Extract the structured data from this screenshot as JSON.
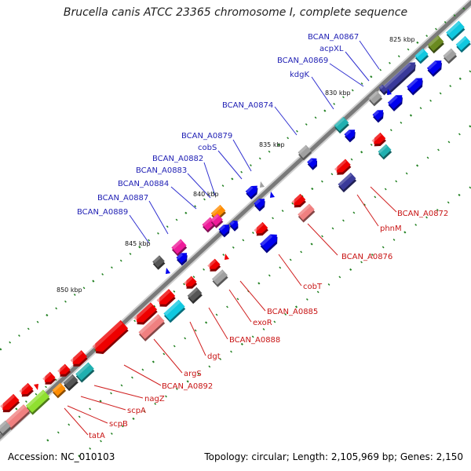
{
  "title": "Brucella canis ATCC 23365 chromosome I, complete sequence",
  "accession": "Accession: NC_010103",
  "summary": "Topology: circular; Length: 2,105,969 bp; Genes: 2,150",
  "ticks": [
    "825 kbp",
    "830 kbp",
    "835 kbp",
    "840 kbp",
    "845 kbp",
    "850 kbp"
  ],
  "forward_labels": [
    "BCAN_A0867",
    "acpXL",
    "BCAN_A0869",
    "kdgK",
    "BCAN_A0874",
    "BCAN_A0879",
    "cobS",
    "BCAN_A0882",
    "BCAN_A0883",
    "BCAN_A0884",
    "BCAN_A0887",
    "BCAN_A0889"
  ],
  "reverse_labels": [
    "BCAN_A0872",
    "phnM",
    "BCAN_A0876",
    "cobT",
    "BCAN_A0885",
    "exoR",
    "BCAN_A0888",
    "dgt",
    "argS",
    "BCAN_A0892",
    "nagZ",
    "scpA",
    "scpB",
    "tatA"
  ],
  "colors": {
    "forward_label": "#1f1fb4",
    "reverse_label": "#c81414",
    "backbone": "#808080",
    "blue": "#0000ee",
    "red": "#ee0000",
    "navy": "#3a3a9a",
    "teal": "#20b0b0",
    "cyan": "#10c8e0",
    "olive": "#6a8a20",
    "pink": "#ee1a9a",
    "orange": "#ff8c00",
    "salmon": "#f08080",
    "gray": "#a0a0a0",
    "darkgray": "#555555",
    "lime": "#90e030",
    "tick_green": "#208020"
  }
}
